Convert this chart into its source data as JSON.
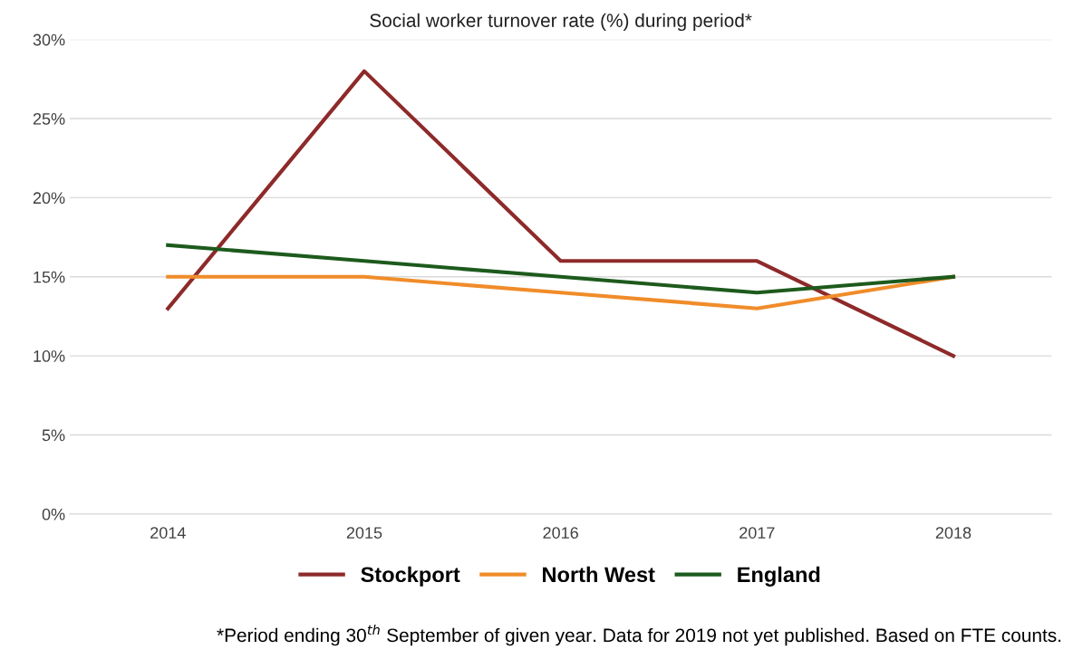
{
  "chart_data": {
    "type": "line",
    "title": "Social worker turnover rate (%) during period*",
    "categories": [
      "2014",
      "2015",
      "2016",
      "2017",
      "2018"
    ],
    "series": [
      {
        "name": "Stockport",
        "color": "#8e2a2a",
        "values": [
          13,
          28,
          16,
          16,
          10
        ]
      },
      {
        "name": "North West",
        "color": "#f08c2a",
        "values": [
          15,
          15,
          14,
          13,
          15
        ]
      },
      {
        "name": "England",
        "color": "#1d5a1d",
        "values": [
          17,
          16,
          15,
          14,
          15
        ]
      }
    ],
    "ylim": [
      0,
      30
    ],
    "yticks": [
      {
        "value": 0,
        "label": "0%"
      },
      {
        "value": 5,
        "label": "5%"
      },
      {
        "value": 10,
        "label": "10%"
      },
      {
        "value": 15,
        "label": "15%"
      },
      {
        "value": 20,
        "label": "20%"
      },
      {
        "value": 25,
        "label": "25%"
      },
      {
        "value": 30,
        "label": "30%"
      }
    ],
    "grid": "y",
    "legend": "bottom",
    "marker": "none",
    "line_style": "solid",
    "annotations": [
      "*Period ending 30$^{th}$ September of given year. Data for 2019 not yet published. Based on FTE counts."
    ]
  }
}
